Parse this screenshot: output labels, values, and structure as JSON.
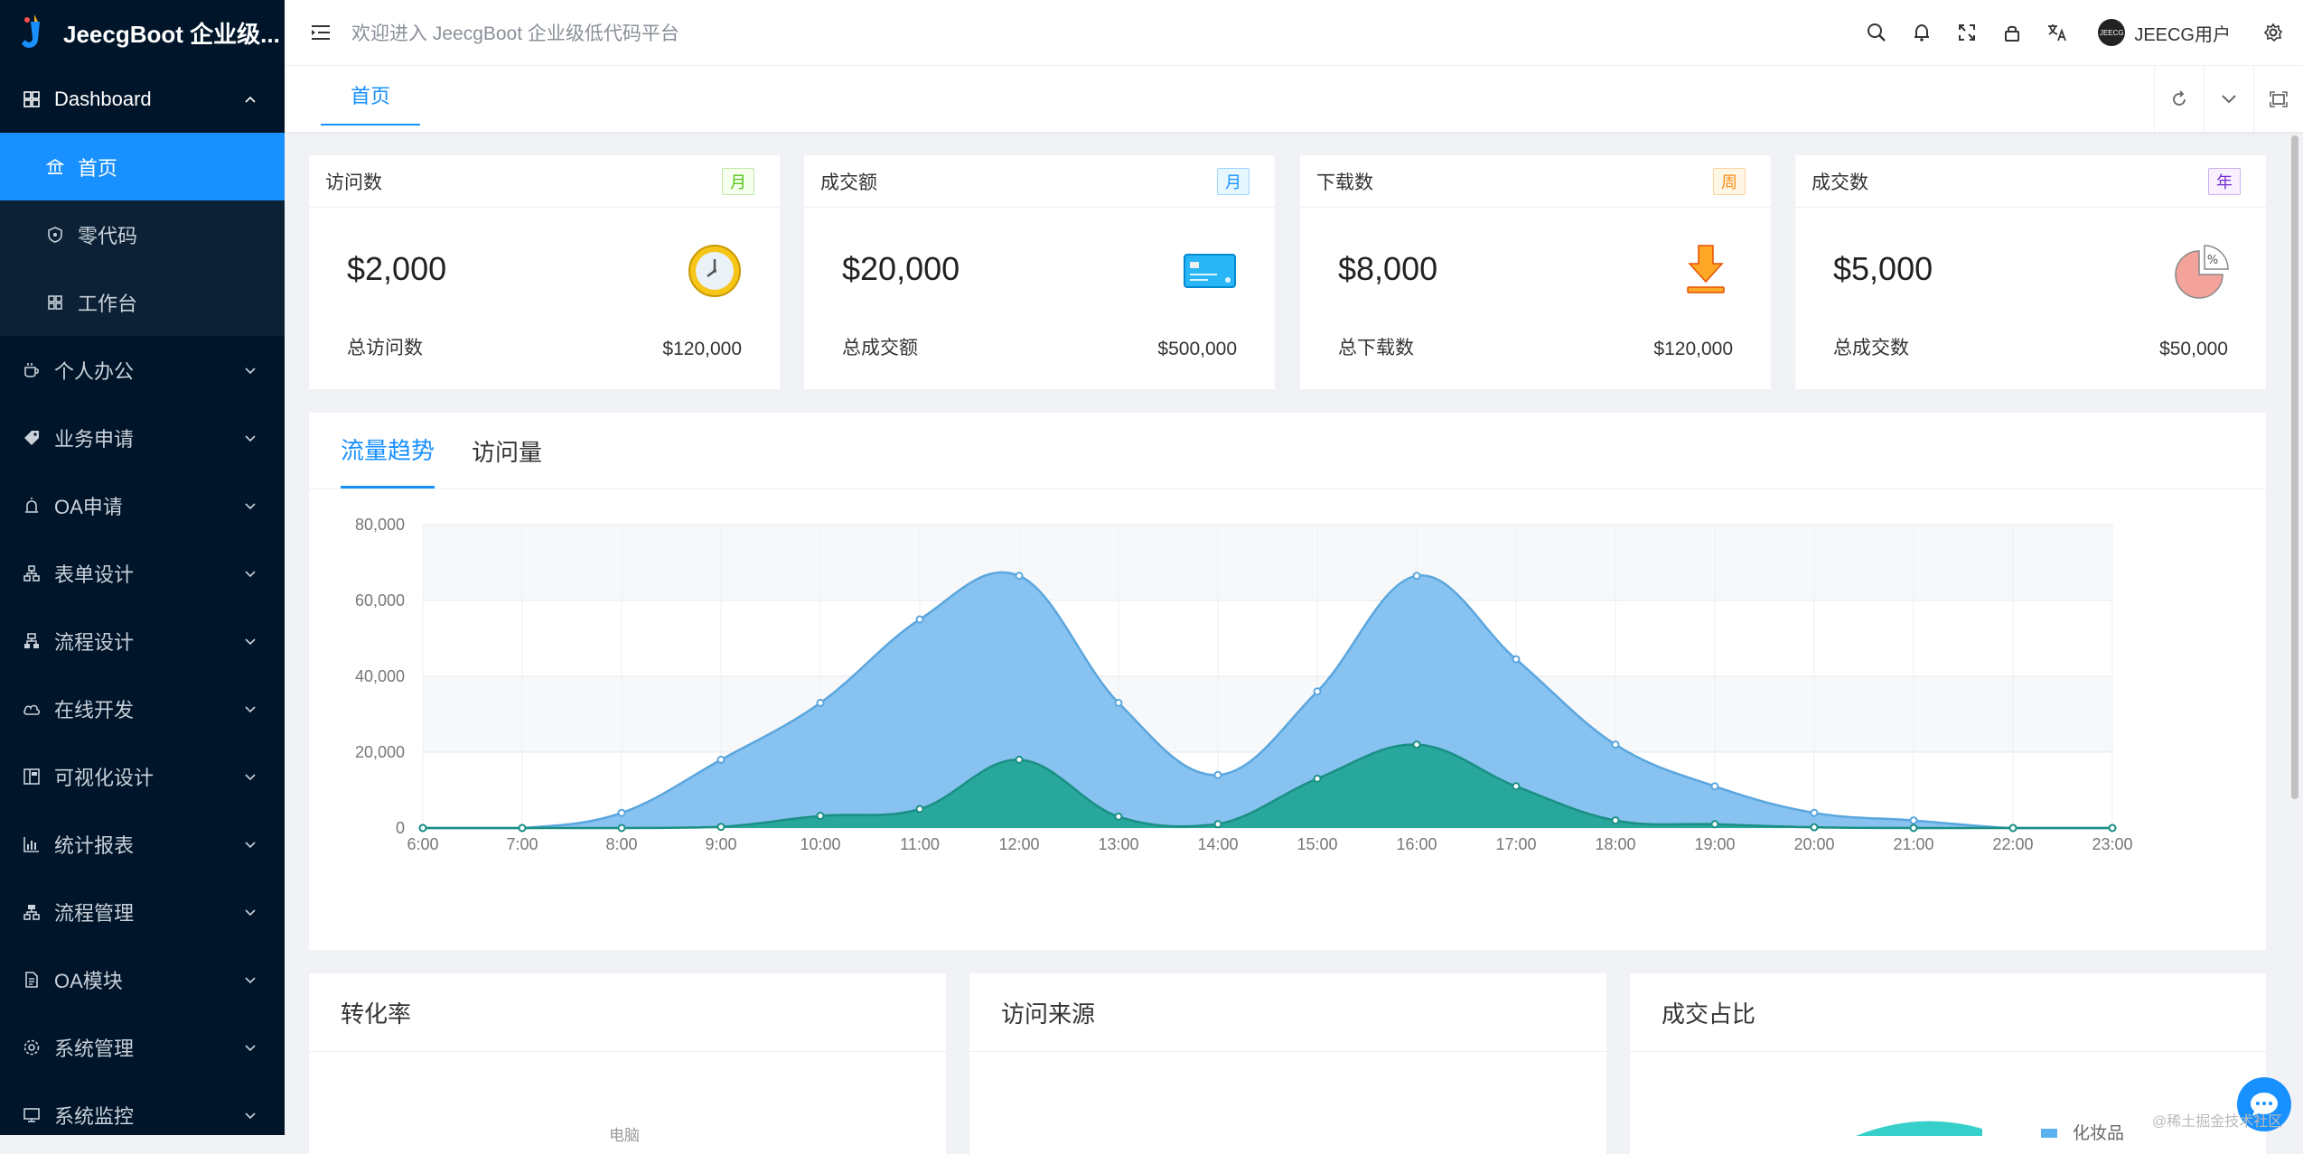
{
  "app": {
    "title": "JeecgBoot 企业级...",
    "welcome": "欢迎进入 JeecgBoot 企业级低代码平台",
    "username": "JEECG用户",
    "avatar_text": "JEECG"
  },
  "sidebar": {
    "items": [
      {
        "label": "Dashboard",
        "icon": "dashboard-icon",
        "open": true
      },
      {
        "label": "个人办公",
        "icon": "coffee-icon"
      },
      {
        "label": "业务申请",
        "icon": "tag-icon"
      },
      {
        "label": "OA申请",
        "icon": "alarm-icon"
      },
      {
        "label": "表单设计",
        "icon": "cluster-icon"
      },
      {
        "label": "流程设计",
        "icon": "flow-icon"
      },
      {
        "label": "在线开发",
        "icon": "cloud-icon"
      },
      {
        "label": "可视化设计",
        "icon": "layout-icon"
      },
      {
        "label": "统计报表",
        "icon": "bar-chart-icon"
      },
      {
        "label": "流程管理",
        "icon": "apartment-icon"
      },
      {
        "label": "OA模块",
        "icon": "file-icon"
      },
      {
        "label": "系统管理",
        "icon": "setting-icon"
      },
      {
        "label": "系统监控",
        "icon": "monitor-icon"
      }
    ],
    "sub_items": [
      {
        "label": "首页",
        "icon": "bank-icon",
        "active": true
      },
      {
        "label": "零代码",
        "icon": "shield-icon"
      },
      {
        "label": "工作台",
        "icon": "appstore-icon"
      }
    ]
  },
  "tabs": {
    "home": "首页"
  },
  "stats": [
    {
      "title": "访问数",
      "badge": "月",
      "badge_color": "#52c41a",
      "badge_bg": "#f6ffed",
      "value": "$2,000",
      "foot_label": "总访问数",
      "foot_value": "$120,000",
      "icon": "clock-icon"
    },
    {
      "title": "成交额",
      "badge": "月",
      "badge_color": "#1890ff",
      "badge_bg": "#e6f7ff",
      "value": "$20,000",
      "foot_label": "总成交额",
      "foot_value": "$500,000",
      "icon": "credit-card-icon"
    },
    {
      "title": "下载数",
      "badge": "周",
      "badge_color": "#fa8c16",
      "badge_bg": "#fff7e6",
      "value": "$8,000",
      "foot_label": "总下载数",
      "foot_value": "$120,000",
      "icon": "download-icon"
    },
    {
      "title": "成交数",
      "badge": "年",
      "badge_color": "#722ed1",
      "badge_bg": "#f9f0ff",
      "value": "$5,000",
      "foot_label": "总成交数",
      "foot_value": "$50,000",
      "icon": "pie-icon"
    }
  ],
  "chart_tabs": [
    "流量趋势",
    "访问量"
  ],
  "chart_data": {
    "type": "area",
    "x": [
      "6:00",
      "7:00",
      "8:00",
      "9:00",
      "10:00",
      "11:00",
      "12:00",
      "13:00",
      "14:00",
      "15:00",
      "16:00",
      "17:00",
      "18:00",
      "19:00",
      "20:00",
      "21:00",
      "22:00",
      "23:00"
    ],
    "series": [
      {
        "values": [
          0,
          0,
          4000,
          18000,
          33000,
          55000,
          66500,
          33000,
          14000,
          36000,
          66500,
          44500,
          22000,
          11000,
          4000,
          2000,
          0,
          0
        ],
        "color": "#86c1f0",
        "line": "#5aa6de"
      },
      {
        "values": [
          0,
          0,
          0,
          300,
          3200,
          5000,
          18000,
          3000,
          1000,
          13000,
          22000,
          11000,
          2000,
          1000,
          200,
          0,
          0,
          0
        ],
        "color": "#26a69a",
        "line": "#1a8f84"
      }
    ],
    "yticks": [
      "0",
      "20,000",
      "40,000",
      "60,000",
      "80,000"
    ],
    "ylim": [
      0,
      80000
    ],
    "grid": true
  },
  "bottom_cards": [
    {
      "title": "转化率",
      "note": "电脑"
    },
    {
      "title": "访问来源",
      "note": ""
    },
    {
      "title": "成交占比",
      "note": "化妆品"
    }
  ],
  "watermark": "@稀土掘金技术社区"
}
